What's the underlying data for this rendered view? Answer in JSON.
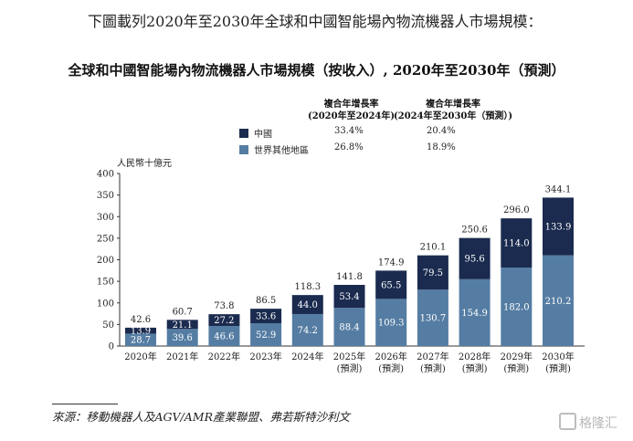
{
  "intro_text": "下圖載列2020年至2030年全球和中國智能場內物流機器人市場規模：",
  "legend": {
    "cagr_headers": [
      {
        "line1": "複合年增長率",
        "line2": "(2020年至2024年)"
      },
      {
        "line1": "複合年增長率",
        "line2": "(2024年至2030年（預測）)"
      }
    ],
    "rows": [
      {
        "label": "中國",
        "color": "#1b2b4f",
        "cagr_2020_2024": "33.4%",
        "cagr_2024_2030": "20.4%"
      },
      {
        "label": "世界其他地區",
        "color": "#557da3",
        "cagr_2020_2024": "26.8%",
        "cagr_2024_2030": "18.9%"
      }
    ]
  },
  "source": "來源：移動機器人及AGV/AMR產業聯盟、弗若斯特沙利文",
  "watermark": "格隆汇",
  "chart_data": {
    "type": "bar",
    "stacked": true,
    "title": "全球和中國智能場內物流機器人市場規模（按收入）, 2020年至2030年（預測）",
    "ylabel": "人民幣十億元",
    "ylim": [
      0,
      400
    ],
    "yticks": [
      "0",
      "50",
      "100",
      "150",
      "200",
      "250",
      "300",
      "350",
      "400"
    ],
    "categories": [
      {
        "line1": "2020年",
        "line2": ""
      },
      {
        "line1": "2021年",
        "line2": ""
      },
      {
        "line1": "2022年",
        "line2": ""
      },
      {
        "line1": "2023年",
        "line2": ""
      },
      {
        "line1": "2024年",
        "line2": ""
      },
      {
        "line1": "2025年",
        "line2": "(預測)"
      },
      {
        "line1": "2026年",
        "line2": "(預測)"
      },
      {
        "line1": "2027年",
        "line2": "(預測)"
      },
      {
        "line1": "2028年",
        "line2": "(預測)"
      },
      {
        "line1": "2029年",
        "line2": "(預測)"
      },
      {
        "line1": "2030年",
        "line2": "(預測)"
      }
    ],
    "series": [
      {
        "name": "世界其他地區",
        "color": "#557da3",
        "values": [
          28.7,
          39.6,
          46.6,
          52.9,
          74.2,
          88.4,
          109.3,
          130.7,
          154.9,
          182.0,
          210.2
        ],
        "labels": [
          "28.7",
          "39.6",
          "46.6",
          "52.9",
          "74.2",
          "88.4",
          "109.3",
          "130.7",
          "154.9",
          "182.0",
          "210.2"
        ]
      },
      {
        "name": "中國",
        "color": "#1b2b4f",
        "values": [
          13.9,
          21.1,
          27.2,
          33.6,
          44.0,
          53.4,
          65.5,
          79.5,
          95.6,
          114.0,
          133.9
        ],
        "labels": [
          "13.9",
          "21.1",
          "27.2",
          "33.6",
          "44.0",
          "53.4",
          "65.5",
          "79.5",
          "95.6",
          "114.0",
          "133.9"
        ]
      }
    ],
    "totals": [
      "42.6",
      "60.7",
      "73.8",
      "86.5",
      "118.3",
      "141.8",
      "174.9",
      "210.1",
      "250.6",
      "296.0",
      "344.1"
    ],
    "grid": false
  }
}
